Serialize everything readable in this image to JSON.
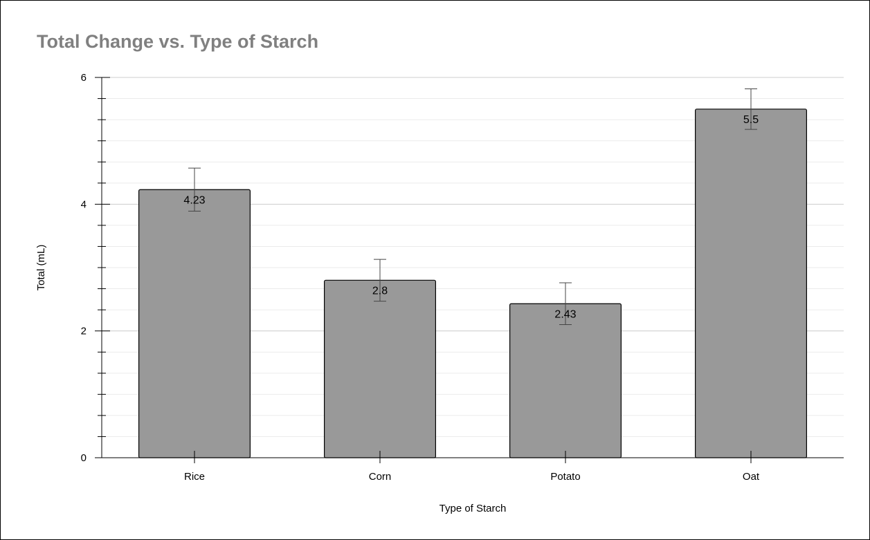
{
  "chart_data": {
    "type": "bar",
    "title": "Total Change vs. Type of Starch",
    "xlabel": "Type of Starch",
    "ylabel": "Total  (mL)",
    "categories": [
      "Rice",
      "Corn",
      "Potato",
      "Oat"
    ],
    "values": [
      4.23,
      2.8,
      2.43,
      5.5
    ],
    "value_labels": [
      "4.23",
      "2.8",
      "2.43",
      "5.5"
    ],
    "error": [
      0.34,
      0.33,
      0.33,
      0.32
    ],
    "ylim": [
      0,
      6
    ],
    "yticks": [
      0,
      2,
      4,
      6
    ],
    "grid": true,
    "legend": "none",
    "colors": {
      "bar_fill": "#999999",
      "bar_stroke": "#000000",
      "grid": "#d9d9d9",
      "title": "#808080"
    }
  }
}
